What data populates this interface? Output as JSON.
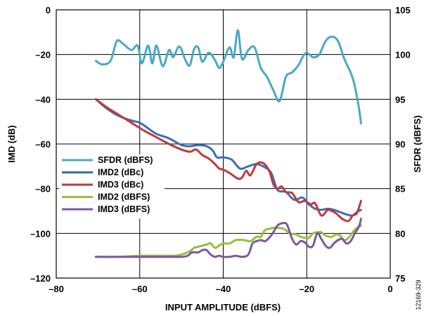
{
  "chart_data": {
    "type": "line",
    "xlabel": "INPUT AMPLITUDE (dBFS)",
    "ylabel": "IMD (dB)",
    "y2label": "SFDR (dBFS)",
    "xlim": [
      -80,
      0
    ],
    "ylim": [
      -120,
      0
    ],
    "y2lim": [
      75,
      105
    ],
    "xticks": [
      "–80",
      "–60",
      "–40",
      "–20",
      "0"
    ],
    "xtick_values": [
      -80,
      -60,
      -40,
      -20,
      0
    ],
    "yticks": [
      "0",
      "–20",
      "–40",
      "–60",
      "–80",
      "–100",
      "–120"
    ],
    "ytick_values": [
      0,
      -20,
      -40,
      -60,
      -80,
      -100,
      -120
    ],
    "y2ticks": [
      "105",
      "100",
      "95",
      "90",
      "85",
      "80",
      "75"
    ],
    "y2tick_values": [
      105,
      100,
      95,
      90,
      85,
      80,
      75
    ],
    "grid": true,
    "legend_position": "left",
    "figure_id": "12169-329",
    "series": [
      {
        "name": "SFDR (dBFS)",
        "axis": "right",
        "color": "#48a9c5",
        "x": [
          -70.5,
          -69,
          -67,
          -65.5,
          -64,
          -62,
          -60.5,
          -59.5,
          -58,
          -57,
          -56,
          -54.5,
          -53,
          -52,
          -50.5,
          -49,
          -48,
          -47,
          -46,
          -45,
          -43.5,
          -42,
          -41,
          -40,
          -38.5,
          -37.5,
          -36.5,
          -35.5,
          -34,
          -32.5,
          -31,
          -29.5,
          -28,
          -26.5,
          -25,
          -23.5,
          -22,
          -21,
          -20,
          -18.5,
          -17,
          -15.5,
          -14,
          -12.5,
          -11,
          -9.5,
          -8.5,
          -7.5,
          -7
        ],
        "y": [
          99.3,
          98.9,
          99.3,
          101.5,
          101.2,
          100.5,
          101,
          99,
          101,
          99,
          101,
          98.7,
          100.5,
          99.7,
          100.9,
          99.3,
          98.8,
          100.6,
          100.8,
          99.2,
          100.2,
          99.4,
          98.5,
          99.2,
          100.8,
          99.7,
          102.7,
          99.5,
          100.5,
          100.8,
          98.5,
          97.5,
          96,
          94.8,
          97.5,
          98,
          98.8,
          99.7,
          100.2,
          99.7,
          100,
          101.5,
          102,
          101.5,
          99.5,
          98,
          96.5,
          94,
          92.3
        ]
      },
      {
        "name": "IMD2 (dBc)",
        "axis": "left",
        "color": "#3a6fb7",
        "x": [
          -70.5,
          -68,
          -65,
          -62,
          -60,
          -58,
          -56,
          -53,
          -50,
          -48,
          -46,
          -44,
          -42.5,
          -41.5,
          -40,
          -38,
          -36,
          -34,
          -32,
          -30,
          -28.5,
          -27,
          -25,
          -23,
          -21,
          -19.5,
          -18,
          -16.5,
          -15,
          -13.5,
          -12,
          -10.5,
          -9,
          -8,
          -7
        ],
        "y": [
          -40,
          -44,
          -47.5,
          -49.5,
          -50.5,
          -53,
          -55.5,
          -57.5,
          -60.5,
          -61,
          -60.5,
          -61,
          -63,
          -66,
          -66,
          -67,
          -71,
          -70,
          -69,
          -70.5,
          -73,
          -80.5,
          -81.5,
          -85,
          -84,
          -87,
          -89,
          -89.5,
          -89,
          -89.5,
          -90.5,
          -91.5,
          -92,
          -90.5,
          -89.5
        ]
      },
      {
        "name": "IMD3 (dBc)",
        "axis": "left",
        "color": "#c0393b",
        "x": [
          -70.5,
          -68,
          -65,
          -62,
          -59,
          -56,
          -53,
          -50,
          -48,
          -46.5,
          -45,
          -43.5,
          -42,
          -41,
          -40,
          -38.5,
          -36.5,
          -35.5,
          -34.5,
          -33.5,
          -32,
          -30.5,
          -29,
          -28,
          -27,
          -26,
          -25,
          -23.5,
          -22,
          -20.5,
          -19,
          -18,
          -16.5,
          -15,
          -14,
          -13,
          -11.5,
          -10,
          -9,
          -8,
          -7
        ],
        "y": [
          -40,
          -43.5,
          -47,
          -50.5,
          -54,
          -57,
          -60,
          -62.5,
          -63.5,
          -62.5,
          -65,
          -66.5,
          -69,
          -71,
          -71.5,
          -73,
          -75.5,
          -75,
          -72,
          -74,
          -69,
          -68.5,
          -72,
          -78,
          -80,
          -79,
          -81.5,
          -82,
          -86,
          -85.5,
          -87,
          -86.5,
          -92,
          -89.5,
          -90,
          -91,
          -93.5,
          -94.5,
          -92,
          -91,
          -85.5
        ]
      },
      {
        "name": "IMD2 (dBFS)",
        "axis": "left",
        "color": "#93c13d",
        "x": [
          -70.5,
          -65,
          -60,
          -57,
          -55,
          -52,
          -50,
          -48,
          -47,
          -46,
          -45,
          -44,
          -43,
          -42,
          -41,
          -40,
          -38.5,
          -37,
          -35,
          -33.5,
          -32,
          -31,
          -30,
          -29,
          -28,
          -27,
          -25.5,
          -24,
          -22.5,
          -21.5,
          -20.5,
          -19.5,
          -18.5,
          -17.5,
          -16.5,
          -15.5,
          -14,
          -13,
          -12,
          -11,
          -10,
          -9,
          -8,
          -7
        ],
        "y": [
          -110.5,
          -110.5,
          -110,
          -110,
          -110,
          -110,
          -109.5,
          -108,
          -106.5,
          -106,
          -105.5,
          -105,
          -104.5,
          -106.5,
          -105.5,
          -104.5,
          -104.5,
          -103,
          -103,
          -103.5,
          -101.5,
          -101.5,
          -98.5,
          -98,
          -97.5,
          -97.5,
          -98,
          -100,
          -100.5,
          -101.5,
          -102,
          -102,
          -100,
          -99.5,
          -99.5,
          -101,
          -101.5,
          -100.5,
          -101,
          -103,
          -102,
          -99.5,
          -97.5,
          -96.5
        ]
      },
      {
        "name": "IMD3 (dBFS)",
        "axis": "left",
        "color": "#7b58a0",
        "x": [
          -70.5,
          -65,
          -62,
          -60,
          -58,
          -56,
          -54,
          -52,
          -50,
          -48.5,
          -47.5,
          -46,
          -45,
          -44,
          -43,
          -42,
          -41,
          -40,
          -38.5,
          -37,
          -35.5,
          -34,
          -33,
          -32,
          -31,
          -30,
          -29,
          -28,
          -27,
          -26,
          -25,
          -24.5,
          -23.5,
          -22.5,
          -21.5,
          -20.5,
          -19.5,
          -18.5,
          -17.5,
          -16.5,
          -15.5,
          -14.5,
          -13.5,
          -12.5,
          -11.5,
          -10.5,
          -9.5,
          -8.5,
          -7.5,
          -7
        ],
        "y": [
          -110.5,
          -110.5,
          -110.5,
          -110.5,
          -110.5,
          -110.5,
          -110.5,
          -110.5,
          -110.5,
          -110,
          -108.5,
          -108.5,
          -107.5,
          -107.5,
          -109.5,
          -110.5,
          -110,
          -110.5,
          -110.5,
          -110,
          -110.5,
          -109.5,
          -104.5,
          -103.5,
          -103,
          -103.5,
          -102,
          -99.5,
          -96.5,
          -95.5,
          -95.5,
          -97,
          -102.5,
          -105,
          -103.5,
          -104,
          -106,
          -105.5,
          -100,
          -102.5,
          -105.5,
          -106.5,
          -104.5,
          -103,
          -102.5,
          -104.5,
          -103.5,
          -100,
          -97,
          -93.5
        ]
      }
    ]
  }
}
